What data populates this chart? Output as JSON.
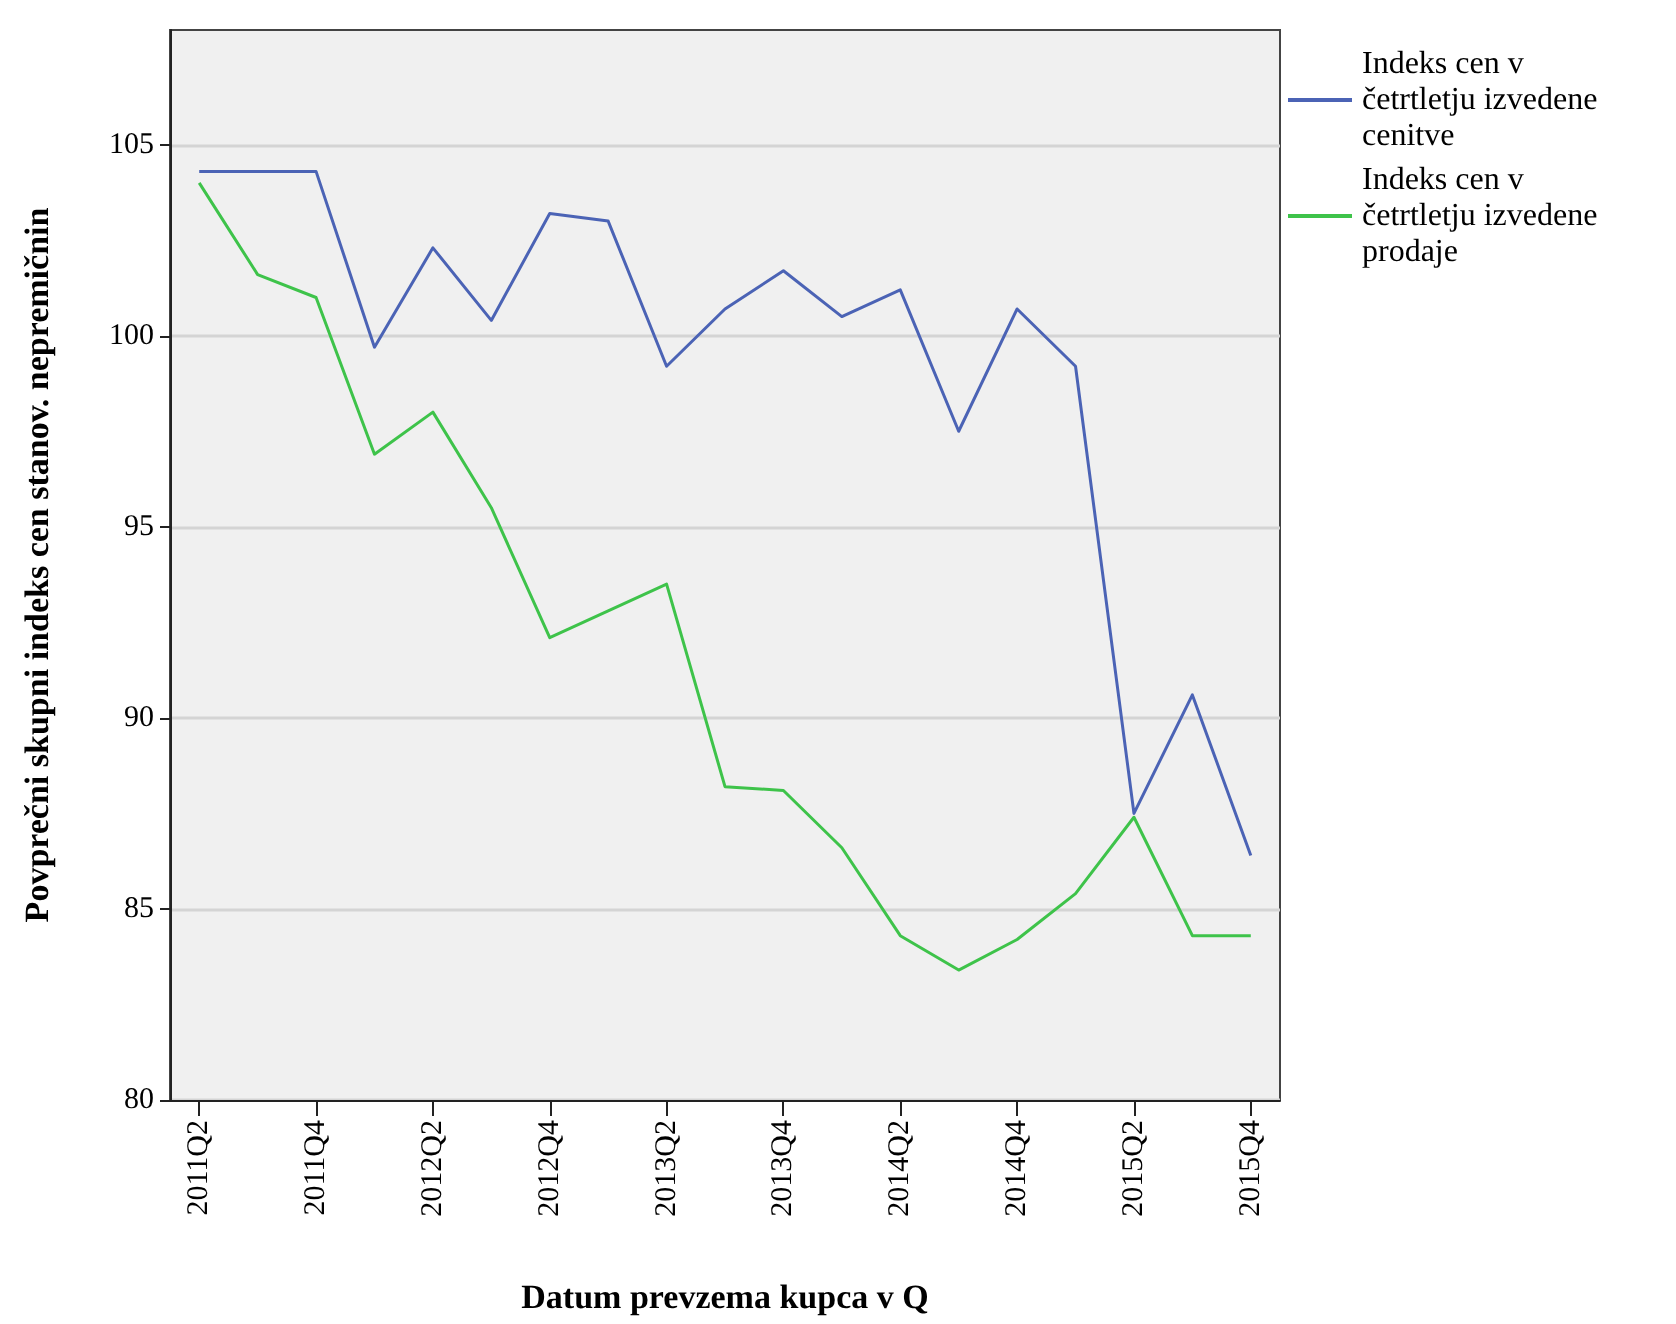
{
  "chart_data": {
    "type": "line",
    "xlabel": "Datum prevzema kupca v Q",
    "ylabel": "Povprečni skupni indeks cen stanov. nepremičnin",
    "categories": [
      "2011Q2",
      null,
      "2011Q4",
      null,
      "2012Q2",
      null,
      "2012Q4",
      null,
      "2013Q2",
      null,
      "2013Q4",
      null,
      "2014Q2",
      null,
      "2014Q4",
      null,
      "2015Q2",
      null,
      "2015Q4"
    ],
    "series": [
      {
        "name": "Indeks cen v četrtletju izvedene cenitve",
        "color": "#4b63b5",
        "values": [
          104.3,
          104.3,
          104.3,
          99.7,
          102.3,
          100.4,
          103.2,
          103.0,
          99.2,
          100.7,
          101.7,
          100.5,
          101.2,
          97.5,
          100.7,
          99.2,
          87.5,
          90.6,
          86.4
        ]
      },
      {
        "name": "Indeks cen v četrtletju izvedene prodaje",
        "color": "#3ec34a",
        "values": [
          104.0,
          101.6,
          101.0,
          96.9,
          98.0,
          95.5,
          92.1,
          92.8,
          93.5,
          88.2,
          88.1,
          86.6,
          84.3,
          83.4,
          84.2,
          85.4,
          87.4,
          84.3,
          84.3
        ]
      }
    ],
    "ylim": [
      80,
      108
    ],
    "yticks": [
      80,
      85,
      90,
      95,
      100,
      105
    ],
    "grid": "y",
    "legend": "top right",
    "marker": "none",
    "line_style": "solid"
  }
}
